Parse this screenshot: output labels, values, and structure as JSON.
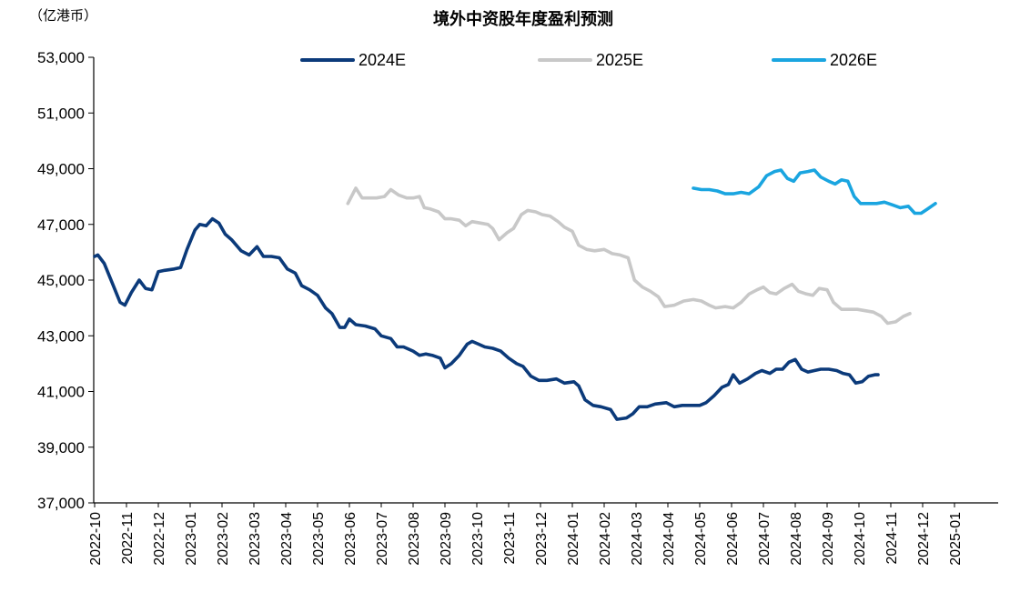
{
  "chart_data": {
    "type": "line",
    "title": "境外中资股年度盈利预测",
    "unit": "（亿港币）",
    "xlabel": "",
    "ylabel": "",
    "ylim": [
      37000,
      53000
    ],
    "y_ticks": [
      "37,000",
      "39,000",
      "41,000",
      "43,000",
      "45,000",
      "47,000",
      "49,000",
      "51,000",
      "53,000"
    ],
    "x_ticks": [
      "2022-10",
      "2022-11",
      "2022-12",
      "2023-01",
      "2023-02",
      "2023-03",
      "2023-04",
      "2023-05",
      "2023-06",
      "2023-07",
      "2023-08",
      "2023-09",
      "2023-10",
      "2023-11",
      "2023-12",
      "2024-01",
      "2024-02",
      "2024-03",
      "2024-04",
      "2024-05",
      "2024-06",
      "2024-07",
      "2024-08",
      "2024-09",
      "2024-10",
      "2024-11",
      "2024-12",
      "2025-01"
    ],
    "grid": false,
    "legend_position": "top",
    "series": [
      {
        "name": "2024E",
        "color": "#0b3a7a",
        "points": [
          [
            0.0,
            45850
          ],
          [
            0.1,
            45900
          ],
          [
            0.3,
            45600
          ],
          [
            0.55,
            44900
          ],
          [
            0.8,
            44200
          ],
          [
            0.95,
            44100
          ],
          [
            1.15,
            44550
          ],
          [
            1.4,
            45000
          ],
          [
            1.6,
            44700
          ],
          [
            1.8,
            44650
          ],
          [
            2.0,
            45300
          ],
          [
            2.2,
            45350
          ],
          [
            2.5,
            45400
          ],
          [
            2.7,
            45450
          ],
          [
            2.9,
            46100
          ],
          [
            3.15,
            46800
          ],
          [
            3.3,
            47000
          ],
          [
            3.5,
            46950
          ],
          [
            3.7,
            47200
          ],
          [
            3.9,
            47050
          ],
          [
            4.1,
            46650
          ],
          [
            4.3,
            46450
          ],
          [
            4.6,
            46050
          ],
          [
            4.85,
            45900
          ],
          [
            5.1,
            46200
          ],
          [
            5.3,
            45850
          ],
          [
            5.55,
            45850
          ],
          [
            5.8,
            45800
          ],
          [
            6.05,
            45400
          ],
          [
            6.3,
            45250
          ],
          [
            6.5,
            44800
          ],
          [
            6.75,
            44650
          ],
          [
            7.0,
            44450
          ],
          [
            7.25,
            44000
          ],
          [
            7.45,
            43800
          ],
          [
            7.7,
            43300
          ],
          [
            7.85,
            43300
          ],
          [
            8.0,
            43600
          ],
          [
            8.2,
            43400
          ],
          [
            8.5,
            43350
          ],
          [
            8.8,
            43250
          ],
          [
            9.0,
            43000
          ],
          [
            9.3,
            42900
          ],
          [
            9.5,
            42600
          ],
          [
            9.7,
            42600
          ],
          [
            10.0,
            42450
          ],
          [
            10.2,
            42300
          ],
          [
            10.4,
            42350
          ],
          [
            10.6,
            42300
          ],
          [
            10.85,
            42200
          ],
          [
            11.0,
            41850
          ],
          [
            11.2,
            42000
          ],
          [
            11.45,
            42300
          ],
          [
            11.7,
            42700
          ],
          [
            11.85,
            42800
          ],
          [
            12.05,
            42700
          ],
          [
            12.25,
            42600
          ],
          [
            12.5,
            42550
          ],
          [
            12.75,
            42450
          ],
          [
            13.0,
            42200
          ],
          [
            13.25,
            42000
          ],
          [
            13.45,
            41900
          ],
          [
            13.7,
            41550
          ],
          [
            13.95,
            41400
          ],
          [
            14.2,
            41400
          ],
          [
            14.5,
            41450
          ],
          [
            14.75,
            41300
          ],
          [
            15.05,
            41350
          ],
          [
            15.2,
            41200
          ],
          [
            15.4,
            40700
          ],
          [
            15.65,
            40500
          ],
          [
            15.9,
            40450
          ],
          [
            16.2,
            40350
          ],
          [
            16.4,
            40000
          ],
          [
            16.7,
            40050
          ],
          [
            16.9,
            40200
          ],
          [
            17.1,
            40450
          ],
          [
            17.35,
            40450
          ],
          [
            17.6,
            40550
          ],
          [
            17.95,
            40600
          ],
          [
            18.2,
            40450
          ],
          [
            18.45,
            40500
          ],
          [
            18.75,
            40500
          ],
          [
            19.0,
            40500
          ],
          [
            19.2,
            40600
          ],
          [
            19.45,
            40850
          ],
          [
            19.7,
            41150
          ],
          [
            19.9,
            41250
          ],
          [
            20.05,
            41600
          ],
          [
            20.25,
            41300
          ],
          [
            20.5,
            41450
          ],
          [
            20.75,
            41650
          ],
          [
            20.95,
            41750
          ],
          [
            21.2,
            41650
          ],
          [
            21.4,
            41800
          ],
          [
            21.6,
            41800
          ],
          [
            21.8,
            42050
          ],
          [
            22.0,
            42150
          ],
          [
            22.2,
            41800
          ],
          [
            22.4,
            41700
          ],
          [
            22.6,
            41750
          ],
          [
            22.8,
            41800
          ],
          [
            23.05,
            41800
          ],
          [
            23.3,
            41750
          ],
          [
            23.5,
            41650
          ],
          [
            23.7,
            41600
          ],
          [
            23.9,
            41300
          ],
          [
            24.1,
            41350
          ],
          [
            24.3,
            41550
          ],
          [
            24.5,
            41600
          ],
          [
            24.6,
            41600
          ]
        ]
      },
      {
        "name": "2025E",
        "color": "#c8c8c8",
        "points": [
          [
            7.95,
            47750
          ],
          [
            8.2,
            48300
          ],
          [
            8.4,
            47950
          ],
          [
            8.6,
            47950
          ],
          [
            8.85,
            47950
          ],
          [
            9.1,
            48000
          ],
          [
            9.3,
            48250
          ],
          [
            9.55,
            48050
          ],
          [
            9.8,
            47950
          ],
          [
            10.0,
            47950
          ],
          [
            10.2,
            48000
          ],
          [
            10.35,
            47600
          ],
          [
            10.55,
            47550
          ],
          [
            10.8,
            47450
          ],
          [
            11.0,
            47200
          ],
          [
            11.2,
            47200
          ],
          [
            11.45,
            47150
          ],
          [
            11.65,
            46950
          ],
          [
            11.85,
            47100
          ],
          [
            12.1,
            47050
          ],
          [
            12.35,
            47000
          ],
          [
            12.5,
            46850
          ],
          [
            12.7,
            46450
          ],
          [
            12.95,
            46700
          ],
          [
            13.15,
            46850
          ],
          [
            13.4,
            47350
          ],
          [
            13.6,
            47500
          ],
          [
            13.85,
            47450
          ],
          [
            14.05,
            47350
          ],
          [
            14.3,
            47300
          ],
          [
            14.55,
            47100
          ],
          [
            14.75,
            46900
          ],
          [
            15.0,
            46750
          ],
          [
            15.2,
            46250
          ],
          [
            15.45,
            46100
          ],
          [
            15.7,
            46050
          ],
          [
            16.0,
            46100
          ],
          [
            16.25,
            45950
          ],
          [
            16.5,
            45900
          ],
          [
            16.75,
            45800
          ],
          [
            16.95,
            45000
          ],
          [
            17.2,
            44750
          ],
          [
            17.45,
            44600
          ],
          [
            17.7,
            44400
          ],
          [
            17.9,
            44050
          ],
          [
            18.2,
            44100
          ],
          [
            18.5,
            44250
          ],
          [
            18.8,
            44300
          ],
          [
            19.05,
            44250
          ],
          [
            19.3,
            44100
          ],
          [
            19.5,
            44000
          ],
          [
            19.8,
            44050
          ],
          [
            20.05,
            44000
          ],
          [
            20.3,
            44200
          ],
          [
            20.55,
            44500
          ],
          [
            20.8,
            44650
          ],
          [
            21.0,
            44750
          ],
          [
            21.2,
            44550
          ],
          [
            21.4,
            44500
          ],
          [
            21.65,
            44700
          ],
          [
            21.9,
            44850
          ],
          [
            22.1,
            44600
          ],
          [
            22.35,
            44500
          ],
          [
            22.55,
            44450
          ],
          [
            22.75,
            44700
          ],
          [
            23.0,
            44650
          ],
          [
            23.2,
            44200
          ],
          [
            23.45,
            43950
          ],
          [
            23.7,
            43950
          ],
          [
            23.95,
            43950
          ],
          [
            24.2,
            43900
          ],
          [
            24.45,
            43850
          ],
          [
            24.7,
            43700
          ],
          [
            24.9,
            43450
          ],
          [
            25.15,
            43500
          ],
          [
            25.4,
            43700
          ],
          [
            25.6,
            43800
          ]
        ]
      },
      {
        "name": "2026E",
        "color": "#1aa5e0",
        "points": [
          [
            18.8,
            48300
          ],
          [
            19.05,
            48250
          ],
          [
            19.3,
            48250
          ],
          [
            19.55,
            48200
          ],
          [
            19.8,
            48100
          ],
          [
            20.05,
            48100
          ],
          [
            20.3,
            48150
          ],
          [
            20.55,
            48100
          ],
          [
            20.85,
            48350
          ],
          [
            21.1,
            48750
          ],
          [
            21.35,
            48900
          ],
          [
            21.55,
            48950
          ],
          [
            21.75,
            48650
          ],
          [
            21.95,
            48550
          ],
          [
            22.15,
            48850
          ],
          [
            22.4,
            48900
          ],
          [
            22.6,
            48950
          ],
          [
            22.8,
            48700
          ],
          [
            23.05,
            48550
          ],
          [
            23.25,
            48450
          ],
          [
            23.45,
            48600
          ],
          [
            23.65,
            48550
          ],
          [
            23.85,
            48000
          ],
          [
            24.05,
            47750
          ],
          [
            24.3,
            47750
          ],
          [
            24.55,
            47750
          ],
          [
            24.8,
            47800
          ],
          [
            25.05,
            47700
          ],
          [
            25.3,
            47600
          ],
          [
            25.55,
            47650
          ],
          [
            25.75,
            47400
          ],
          [
            25.95,
            47400
          ],
          [
            26.15,
            47550
          ],
          [
            26.4,
            47750
          ]
        ]
      }
    ]
  }
}
